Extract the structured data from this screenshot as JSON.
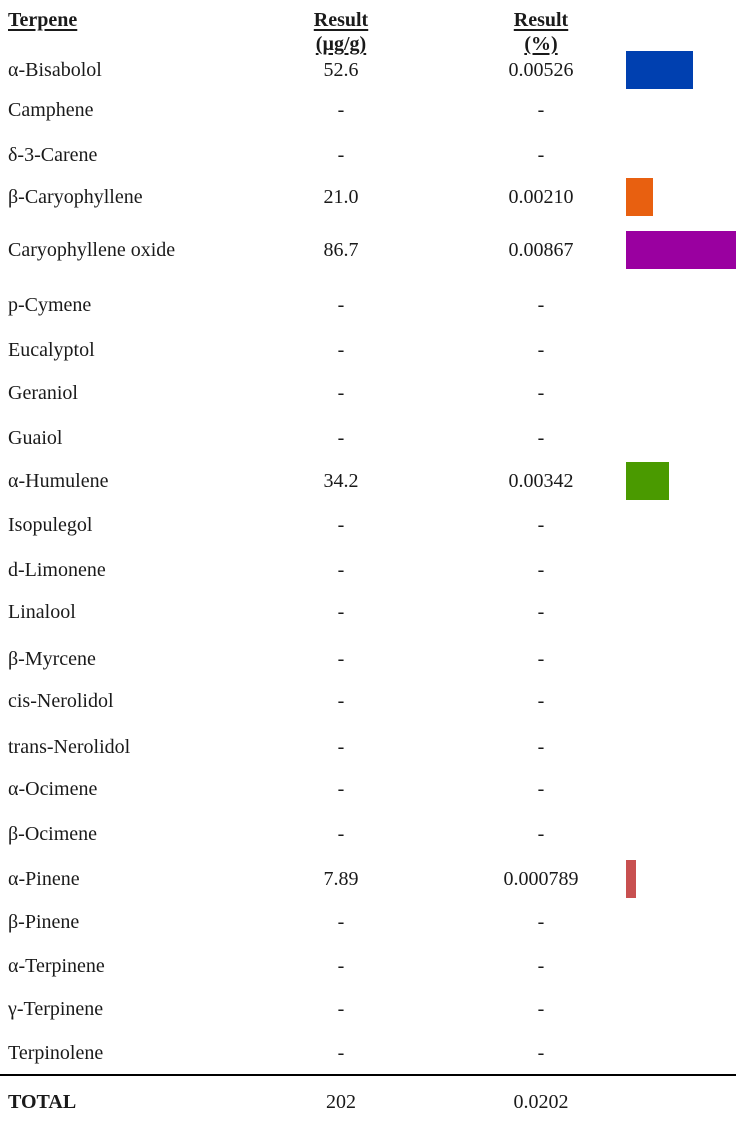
{
  "headers": {
    "terpene": "Terpene",
    "ug_line1": "Result",
    "ug_line2": "(µg/g)",
    "pct_line1": "Result",
    "pct_line2": "(%)"
  },
  "max_ug": 86.7,
  "rows": [
    {
      "name": "α-Bisabolol",
      "ug": "52.6",
      "pct": "0.00526",
      "bar": {
        "value": 52.6,
        "color": "#0040b0"
      }
    },
    {
      "name": "Camphene",
      "ug": "-",
      "pct": "-"
    },
    {
      "name": "δ-3-Carene",
      "ug": "-",
      "pct": "-"
    },
    {
      "name": "β-Caryophyllene",
      "ug": "21.0",
      "pct": "0.00210",
      "bar": {
        "value": 21.0,
        "color": "#e86010"
      }
    },
    {
      "name": "Caryophyllene oxide",
      "ug": "86.7",
      "pct": "0.00867",
      "bar": {
        "value": 86.7,
        "color": "#9a00a0"
      }
    },
    {
      "name": "p-Cymene",
      "ug": "-",
      "pct": "-"
    },
    {
      "name": "Eucalyptol",
      "ug": "-",
      "pct": "-"
    },
    {
      "name": "Geraniol",
      "ug": "-",
      "pct": "-"
    },
    {
      "name": "Guaiol",
      "ug": "-",
      "pct": "-"
    },
    {
      "name": "α-Humulene",
      "ug": "34.2",
      "pct": "0.00342",
      "bar": {
        "value": 34.2,
        "color": "#4a9a00"
      }
    },
    {
      "name": "Isopulegol",
      "ug": "-",
      "pct": "-"
    },
    {
      "name": "d-Limonene",
      "ug": "-",
      "pct": "-"
    },
    {
      "name": "Linalool",
      "ug": "-",
      "pct": "-"
    },
    {
      "name": "β-Myrcene",
      "ug": "-",
      "pct": "-"
    },
    {
      "name": "cis-Nerolidol",
      "ug": "-",
      "pct": "-"
    },
    {
      "name": "trans-Nerolidol",
      "ug": "-",
      "pct": "-"
    },
    {
      "name": "α-Ocimene",
      "ug": "-",
      "pct": "-"
    },
    {
      "name": "β-Ocimene",
      "ug": "-",
      "pct": "-"
    },
    {
      "name": "α-Pinene",
      "ug": "7.89",
      "pct": "0.000789",
      "bar": {
        "value": 7.89,
        "color": "#c85050"
      }
    },
    {
      "name": "β-Pinene",
      "ug": "-",
      "pct": "-"
    },
    {
      "name": "α-Terpinene",
      "ug": "-",
      "pct": "-"
    },
    {
      "name": "γ-Terpinene",
      "ug": "-",
      "pct": "-"
    },
    {
      "name": "Terpinolene",
      "ug": "-",
      "pct": "-"
    }
  ],
  "total": {
    "label": "TOTAL",
    "ug": "202",
    "pct": "0.0202"
  }
}
